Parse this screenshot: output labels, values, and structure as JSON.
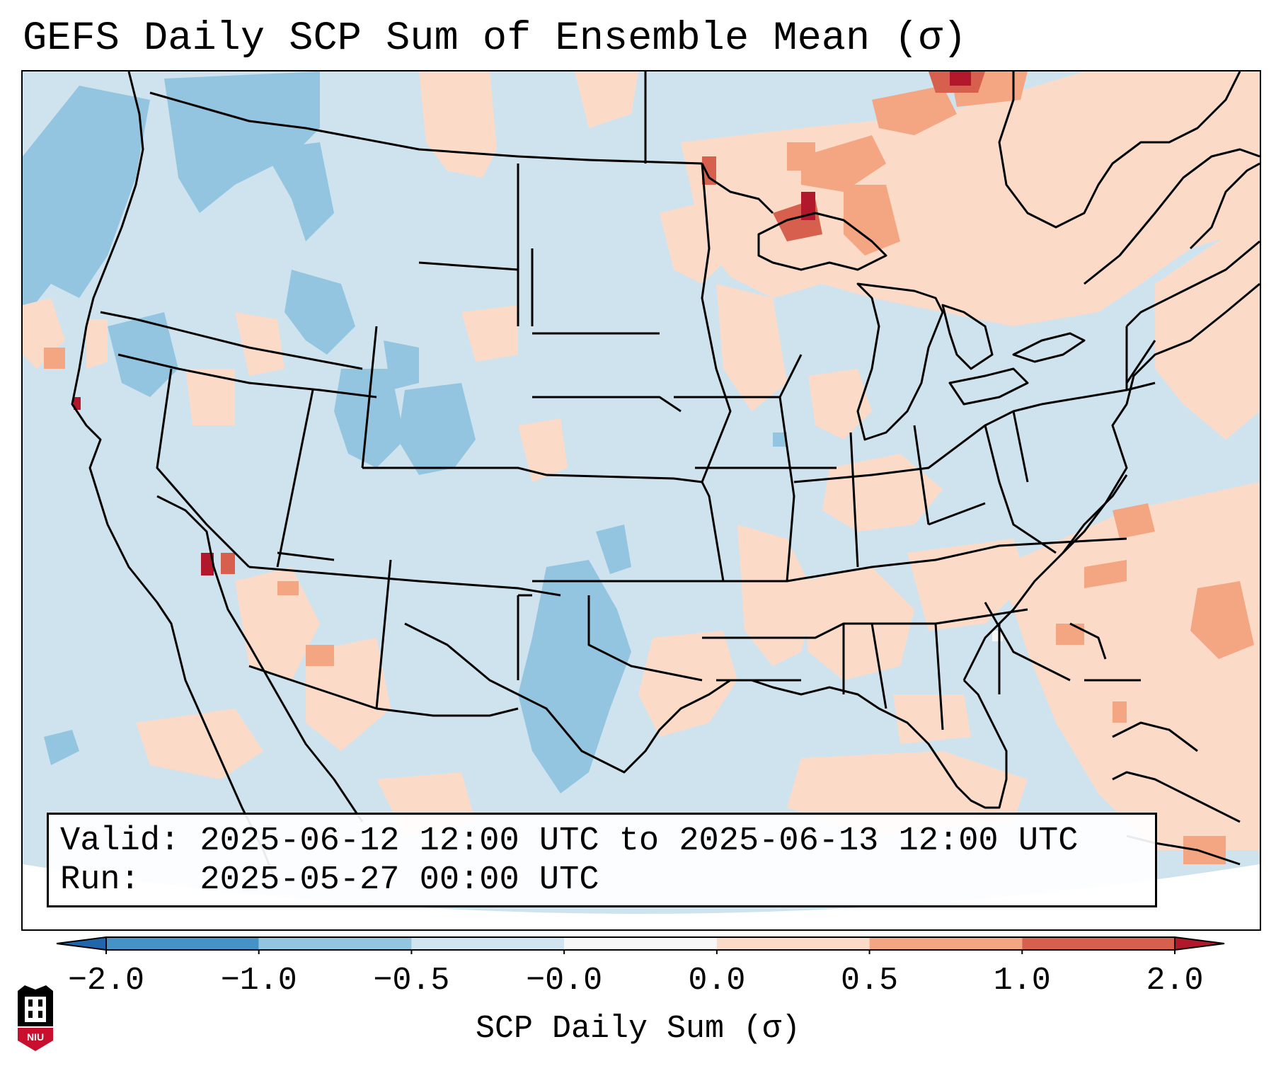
{
  "title": "GEFS Daily SCP Sum of Ensemble Mean (σ)",
  "info": {
    "valid_line": "Valid: 2025-06-12 12:00 UTC to 2025-06-13 12:00 UTC",
    "run_line": "Run:   2025-05-27 00:00 UTC"
  },
  "colorbar": {
    "label": "SCP Daily Sum (σ)",
    "ticks": [
      "−2.0",
      "−1.0",
      "−0.5",
      "−0.0",
      "0.0",
      "0.5",
      "1.0",
      "2.0"
    ],
    "bin_colors": [
      "#4592c6",
      "#93c5e0",
      "#d1e5f0",
      "#f7f7f7",
      "#fbdbc8",
      "#f4a582",
      "#d6604d"
    ],
    "under_color": "#2166ac",
    "over_color": "#b2182b"
  },
  "logo": {
    "text": "NIU"
  },
  "map_colors": {
    "background_field": "#cfe3ef",
    "ocean_outside": "#ffffff",
    "low": "#93c5e0",
    "high_light": "#fbdbc8",
    "high_mid": "#f4a582",
    "high_strong": "#d6604d",
    "high_extreme": "#b2182b",
    "neutral": "#f7f7f7"
  }
}
